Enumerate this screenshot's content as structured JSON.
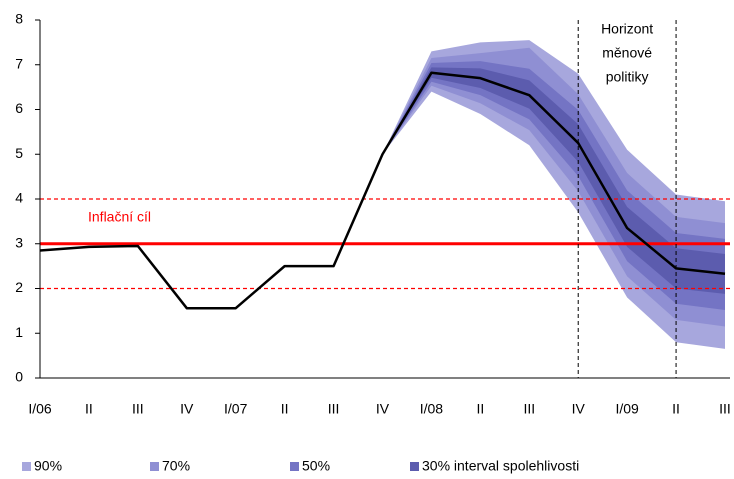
{
  "chart_data": {
    "type": "fan",
    "categories": [
      "I/06",
      "II",
      "III",
      "IV",
      "I/07",
      "II",
      "III",
      "IV",
      "I/08",
      "II",
      "III",
      "IV",
      "I/09",
      "II",
      "III"
    ],
    "values": [
      2.85,
      2.93,
      2.95,
      1.56,
      1.56,
      2.5,
      2.5,
      5.0,
      6.82,
      6.7,
      6.32,
      5.25,
      3.35,
      2.45,
      2.33
    ],
    "line_color": "#000000",
    "bands": [
      {
        "name": "90%",
        "color": "#a7a7dd",
        "lower": [
          null,
          null,
          null,
          null,
          null,
          null,
          null,
          5.0,
          6.4,
          5.9,
          5.2,
          3.7,
          1.8,
          0.8,
          0.65
        ],
        "upper": [
          null,
          null,
          null,
          null,
          null,
          null,
          null,
          5.0,
          7.3,
          7.5,
          7.55,
          6.8,
          5.1,
          4.1,
          3.95
        ]
      },
      {
        "name": "70%",
        "color": "#8f8fd3",
        "lower": [
          null,
          null,
          null,
          null,
          null,
          null,
          null,
          5.0,
          6.53,
          6.14,
          5.54,
          4.17,
          2.27,
          1.3,
          1.15
        ],
        "upper": [
          null,
          null,
          null,
          null,
          null,
          null,
          null,
          5.0,
          7.15,
          7.26,
          7.38,
          6.34,
          4.58,
          3.6,
          3.46
        ]
      },
      {
        "name": "50%",
        "color": "#7474c4",
        "lower": [
          null,
          null,
          null,
          null,
          null,
          null,
          null,
          5.0,
          6.62,
          6.32,
          5.78,
          4.51,
          2.61,
          1.66,
          1.52
        ],
        "upper": [
          null,
          null,
          null,
          null,
          null,
          null,
          null,
          5.0,
          7.04,
          7.08,
          6.91,
          5.99,
          4.19,
          3.24,
          3.11
        ]
      },
      {
        "name": "30% interval spolehlivosti",
        "color": "#5c5cae",
        "lower": [
          null,
          null,
          null,
          null,
          null,
          null,
          null,
          5.0,
          6.71,
          6.48,
          6.02,
          4.83,
          2.93,
          2.0,
          1.88
        ],
        "upper": [
          null,
          null,
          null,
          null,
          null,
          null,
          null,
          5.0,
          6.94,
          6.92,
          6.65,
          5.67,
          3.82,
          2.9,
          2.77
        ]
      }
    ],
    "ylim": [
      0,
      8
    ],
    "yticks": [
      0,
      1,
      2,
      3,
      4,
      5,
      6,
      7,
      8
    ],
    "reference_lines": [
      {
        "value": 3,
        "style": "solid",
        "color": "#ff0000"
      },
      {
        "value": 2,
        "style": "dashed",
        "color": "#ff0000"
      },
      {
        "value": 4,
        "style": "dashed",
        "color": "#ff0000"
      }
    ],
    "target_label": "Inflační cíl",
    "horizon_lines": [
      11,
      13
    ],
    "horizon_label": [
      "Horizont",
      "měnové",
      "politiky"
    ]
  }
}
